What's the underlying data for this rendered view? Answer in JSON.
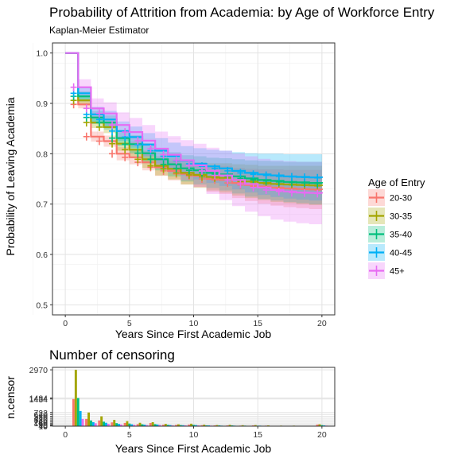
{
  "chart_data": [
    {
      "type": "line",
      "title": "Probability of Attrition from Academia: by Age of Workforce Entry",
      "subtitle": "Kaplan-Meier Estimator",
      "xlabel": "Years Since First Academic Job",
      "ylabel": "Probability of Leaving Academia",
      "xlim": [
        -1,
        21
      ],
      "ylim": [
        0.48,
        1.02
      ],
      "x_ticks": [
        0,
        5,
        10,
        15,
        20
      ],
      "y_ticks": [
        0.5,
        0.6,
        0.7,
        0.8,
        0.9,
        1.0
      ],
      "y_tick_labels": [
        "0.5",
        "0.6",
        "0.7",
        "0.8",
        "0.9",
        "1.0"
      ],
      "grid": true,
      "legend_placement": "right",
      "legend_title": "Age of Entry",
      "step": true,
      "x": [
        0,
        1,
        2,
        3,
        4,
        5,
        6,
        7,
        8,
        9,
        10,
        11,
        12,
        13,
        14,
        15,
        16,
        17,
        18,
        19,
        20
      ],
      "series": [
        {
          "name": "20-30",
          "color": "#F8766D",
          "values": [
            1.0,
            0.898,
            0.834,
            0.825,
            0.8,
            0.793,
            0.783,
            0.773,
            0.766,
            0.76,
            0.756,
            0.75,
            0.748,
            0.742,
            0.738,
            0.735,
            0.733,
            0.731,
            0.73,
            0.729,
            0.728
          ],
          "lower": [
            1.0,
            0.89,
            0.824,
            0.814,
            0.787,
            0.779,
            0.767,
            0.756,
            0.747,
            0.739,
            0.733,
            0.724,
            0.72,
            0.712,
            0.706,
            0.701,
            0.697,
            0.694,
            0.692,
            0.69,
            0.688
          ],
          "upper": [
            1.0,
            0.906,
            0.844,
            0.836,
            0.813,
            0.807,
            0.799,
            0.79,
            0.785,
            0.781,
            0.779,
            0.776,
            0.776,
            0.772,
            0.77,
            0.769,
            0.769,
            0.768,
            0.768,
            0.768,
            0.768
          ]
        },
        {
          "name": "30-35",
          "color": "#A3A500",
          "values": [
            1.0,
            0.906,
            0.862,
            0.853,
            0.82,
            0.808,
            0.789,
            0.776,
            0.77,
            0.762,
            0.758,
            0.754,
            0.752,
            0.748,
            0.745,
            0.742,
            0.74,
            0.739,
            0.738,
            0.737,
            0.736
          ],
          "lower": [
            1.0,
            0.897,
            0.851,
            0.841,
            0.806,
            0.792,
            0.772,
            0.757,
            0.749,
            0.739,
            0.733,
            0.727,
            0.723,
            0.717,
            0.712,
            0.708,
            0.704,
            0.702,
            0.7,
            0.698,
            0.696
          ],
          "upper": [
            1.0,
            0.915,
            0.873,
            0.865,
            0.834,
            0.824,
            0.806,
            0.795,
            0.791,
            0.785,
            0.783,
            0.781,
            0.781,
            0.779,
            0.778,
            0.776,
            0.776,
            0.776,
            0.776,
            0.776,
            0.776
          ]
        },
        {
          "name": "35-40",
          "color": "#00BF7D",
          "values": [
            1.0,
            0.914,
            0.872,
            0.862,
            0.831,
            0.819,
            0.801,
            0.789,
            0.779,
            0.771,
            0.767,
            0.762,
            0.759,
            0.755,
            0.751,
            0.748,
            0.746,
            0.744,
            0.743,
            0.742,
            0.741
          ],
          "lower": [
            1.0,
            0.904,
            0.859,
            0.848,
            0.815,
            0.801,
            0.781,
            0.767,
            0.755,
            0.745,
            0.739,
            0.732,
            0.727,
            0.721,
            0.715,
            0.71,
            0.707,
            0.704,
            0.702,
            0.7,
            0.698
          ],
          "upper": [
            1.0,
            0.924,
            0.885,
            0.876,
            0.847,
            0.837,
            0.821,
            0.811,
            0.803,
            0.797,
            0.795,
            0.792,
            0.791,
            0.789,
            0.787,
            0.786,
            0.785,
            0.784,
            0.784,
            0.784,
            0.784
          ]
        },
        {
          "name": "40-45",
          "color": "#00B0F6",
          "values": [
            1.0,
            0.92,
            0.878,
            0.868,
            0.845,
            0.833,
            0.818,
            0.806,
            0.795,
            0.786,
            0.78,
            0.775,
            0.771,
            0.766,
            0.762,
            0.759,
            0.757,
            0.755,
            0.754,
            0.753,
            0.752
          ],
          "lower": [
            1.0,
            0.908,
            0.863,
            0.851,
            0.826,
            0.812,
            0.795,
            0.781,
            0.768,
            0.757,
            0.749,
            0.742,
            0.736,
            0.729,
            0.723,
            0.718,
            0.714,
            0.711,
            0.709,
            0.707,
            0.705
          ],
          "upper": [
            1.0,
            0.932,
            0.893,
            0.885,
            0.864,
            0.854,
            0.841,
            0.831,
            0.822,
            0.815,
            0.811,
            0.808,
            0.806,
            0.803,
            0.801,
            0.8,
            0.8,
            0.799,
            0.799,
            0.799,
            0.799
          ]
        },
        {
          "name": "45+",
          "color": "#E76BF3",
          "values": [
            1.0,
            0.932,
            0.89,
            0.88,
            0.857,
            0.843,
            0.826,
            0.81,
            0.798,
            0.787,
            0.777,
            0.766,
            0.757,
            0.748,
            0.74,
            0.733,
            0.728,
            0.725,
            0.723,
            0.722,
            0.721
          ],
          "lower": [
            1.0,
            0.916,
            0.87,
            0.858,
            0.832,
            0.815,
            0.795,
            0.776,
            0.761,
            0.747,
            0.734,
            0.72,
            0.708,
            0.696,
            0.685,
            0.676,
            0.669,
            0.665,
            0.662,
            0.66,
            0.658
          ],
          "upper": [
            1.0,
            0.948,
            0.91,
            0.902,
            0.882,
            0.871,
            0.857,
            0.844,
            0.835,
            0.827,
            0.82,
            0.812,
            0.806,
            0.8,
            0.795,
            0.79,
            0.787,
            0.785,
            0.784,
            0.784,
            0.784
          ]
        }
      ]
    },
    {
      "type": "bar",
      "title": "Number of censoring",
      "xlabel": "Years Since First Academic Job",
      "ylabel": "n.censor",
      "xlim": [
        -1,
        21
      ],
      "ylim": [
        0,
        3100
      ],
      "x_ticks": [
        0,
        5,
        10,
        15,
        20
      ],
      "y_tick_values": [
        2970,
        1484,
        1434,
        722,
        620,
        520,
        420,
        330,
        240,
        160,
        90,
        40,
        10
      ],
      "y_tick_labels": [
        "2970",
        "1484",
        "1434",
        "722",
        "620",
        "520",
        "420",
        "330",
        "240",
        "160",
        "90",
        "40",
        "10"
      ],
      "grid": true,
      "series_names": [
        "20-30",
        "30-35",
        "35-40",
        "40-45",
        "45+"
      ],
      "colors": [
        "#F8766D",
        "#A3A500",
        "#00BF7D",
        "#00B0F6",
        "#E76BF3"
      ],
      "groups": [
        {
          "x": 1,
          "values": [
            1434,
            2970,
            1484,
            800,
            380
          ]
        },
        {
          "x": 2,
          "values": [
            380,
            720,
            300,
            210,
            150
          ]
        },
        {
          "x": 3,
          "values": [
            300,
            520,
            240,
            180,
            120
          ]
        },
        {
          "x": 4,
          "values": [
            200,
            330,
            160,
            120,
            90
          ]
        },
        {
          "x": 5,
          "values": [
            170,
            270,
            140,
            100,
            70
          ]
        },
        {
          "x": 6,
          "values": [
            110,
            180,
            100,
            80,
            60
          ]
        },
        {
          "x": 7,
          "values": [
            170,
            210,
            110,
            90,
            70
          ]
        },
        {
          "x": 8,
          "values": [
            80,
            120,
            70,
            60,
            40
          ]
        },
        {
          "x": 9,
          "values": [
            70,
            100,
            60,
            50,
            40
          ]
        },
        {
          "x": 10,
          "values": [
            90,
            130,
            70,
            60,
            40
          ]
        },
        {
          "x": 11,
          "values": [
            50,
            80,
            40,
            40,
            30
          ]
        },
        {
          "x": 12,
          "values": [
            40,
            60,
            40,
            30,
            20
          ]
        },
        {
          "x": 13,
          "values": [
            40,
            70,
            40,
            30,
            20
          ]
        },
        {
          "x": 14,
          "values": [
            30,
            50,
            30,
            20,
            20
          ]
        },
        {
          "x": 15,
          "values": [
            40,
            60,
            30,
            30,
            20
          ]
        },
        {
          "x": 16,
          "values": [
            30,
            40,
            20,
            20,
            10
          ]
        },
        {
          "x": 17,
          "values": [
            20,
            30,
            20,
            20,
            10
          ]
        },
        {
          "x": 18,
          "values": [
            20,
            30,
            20,
            10,
            10
          ]
        },
        {
          "x": 19,
          "values": [
            0,
            0,
            0,
            0,
            0
          ]
        },
        {
          "x": 20,
          "values": [
            90,
            100,
            60,
            40,
            30
          ]
        }
      ]
    }
  ]
}
